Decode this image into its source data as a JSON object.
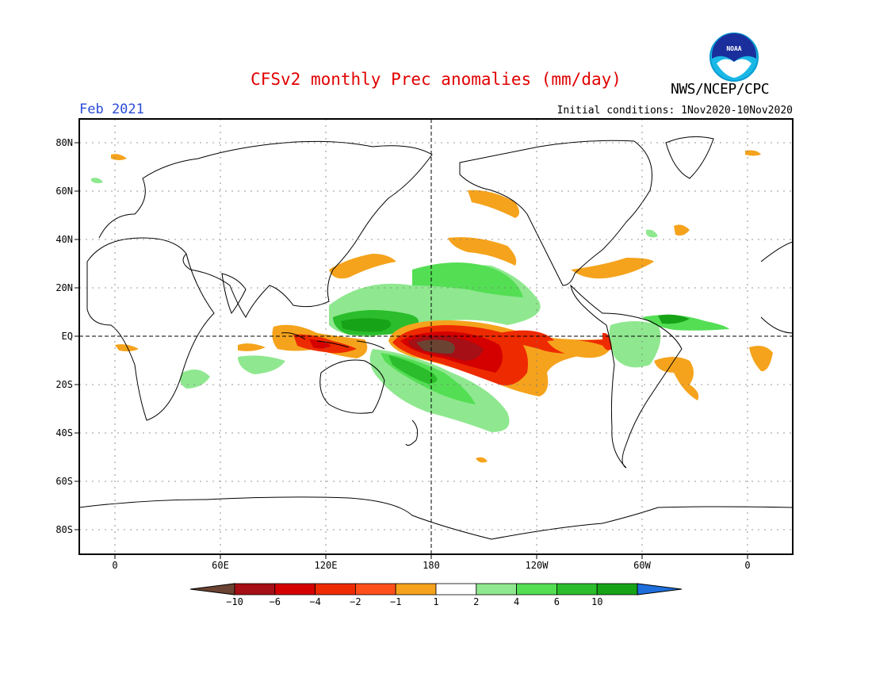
{
  "title": "CFSv2 monthly Prec anomalies (mm/day)",
  "agency": "NWS/NCEP/CPC",
  "logo_text": "NOAA",
  "month_label": "Feb 2021",
  "initial_conditions": "Initial conditions: 1Nov2020-10Nov2020",
  "map": {
    "lat_labels": [
      "80N",
      "60N",
      "40N",
      "20N",
      "EQ",
      "20S",
      "40S",
      "60S",
      "80S"
    ],
    "lon_labels": [
      "0",
      "60E",
      "120E",
      "180",
      "120W",
      "60W",
      "0"
    ],
    "reference_lines": [
      "EQ",
      "180"
    ]
  },
  "colorbar": {
    "labels": [
      "-10",
      "-6",
      "-4",
      "-2",
      "-1",
      "1",
      "2",
      "4",
      "6",
      "10"
    ],
    "colors": [
      "#6b4332",
      "#a50f15",
      "#d40000",
      "#ee2a00",
      "#ff4f1a",
      "#f5a31c",
      "#ffffff",
      "#8fe88f",
      "#54de54",
      "#2bbd2b",
      "#17a317",
      "#1e6fdc"
    ]
  },
  "colors": {
    "title": "#e00000",
    "month": "#2a4bd6",
    "dry_extreme": "#6b4332",
    "dry_strong": "#a50f15",
    "dry": "#d40000",
    "dry_moderate": "#ee2a00",
    "dry_light": "#f5a31c",
    "wet_light": "#8fe88f",
    "wet_moderate": "#54de54",
    "wet": "#2bbd2b",
    "wet_strong": "#17a317",
    "wet_extreme": "#1e6fdc"
  }
}
